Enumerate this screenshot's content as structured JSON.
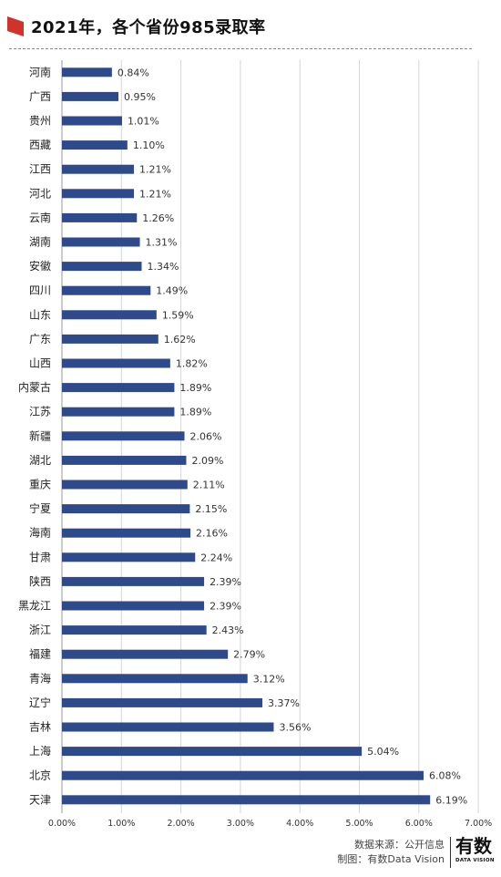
{
  "header": {
    "title": "2021年，各个省份985录取率",
    "accent_color": "#d0332b"
  },
  "chart_data": {
    "type": "bar",
    "orientation": "horizontal",
    "title": "2021年，各个省份985录取率",
    "categories": [
      "河南",
      "广西",
      "贵州",
      "西藏",
      "江西",
      "河北",
      "云南",
      "湖南",
      "安徽",
      "四川",
      "山东",
      "广东",
      "山西",
      "内蒙古",
      "江苏",
      "新疆",
      "湖北",
      "重庆",
      "宁夏",
      "海南",
      "甘肃",
      "陕西",
      "黑龙江",
      "浙江",
      "福建",
      "青海",
      "辽宁",
      "吉林",
      "上海",
      "北京",
      "天津"
    ],
    "values": [
      0.84,
      0.95,
      1.01,
      1.1,
      1.21,
      1.21,
      1.26,
      1.31,
      1.34,
      1.49,
      1.59,
      1.62,
      1.82,
      1.89,
      1.89,
      2.06,
      2.09,
      2.11,
      2.15,
      2.16,
      2.24,
      2.39,
      2.39,
      2.43,
      2.79,
      3.12,
      3.37,
      3.56,
      5.04,
      6.08,
      6.19
    ],
    "value_labels": [
      "0.84%",
      "0.95%",
      "1.01%",
      "1.10%",
      "1.21%",
      "1.21%",
      "1.26%",
      "1.31%",
      "1.34%",
      "1.49%",
      "1.59%",
      "1.62%",
      "1.82%",
      "1.89%",
      "1.89%",
      "2.06%",
      "2.09%",
      "2.11%",
      "2.15%",
      "2.16%",
      "2.24%",
      "2.39%",
      "2.39%",
      "2.43%",
      "2.79%",
      "3.12%",
      "3.37%",
      "3.56%",
      "5.04%",
      "6.08%",
      "6.19%"
    ],
    "xlim": [
      0,
      7
    ],
    "x_ticks": [
      "0.00%",
      "1.00%",
      "2.00%",
      "3.00%",
      "4.00%",
      "5.00%",
      "6.00%",
      "7.00%"
    ],
    "grid": true,
    "bar_color": "#2e4a8b"
  },
  "footer": {
    "source": "数据来源：公开信息",
    "credit": "制图：有数Data Vision",
    "brand": "有数",
    "brand_sub": "DATA VISION"
  }
}
